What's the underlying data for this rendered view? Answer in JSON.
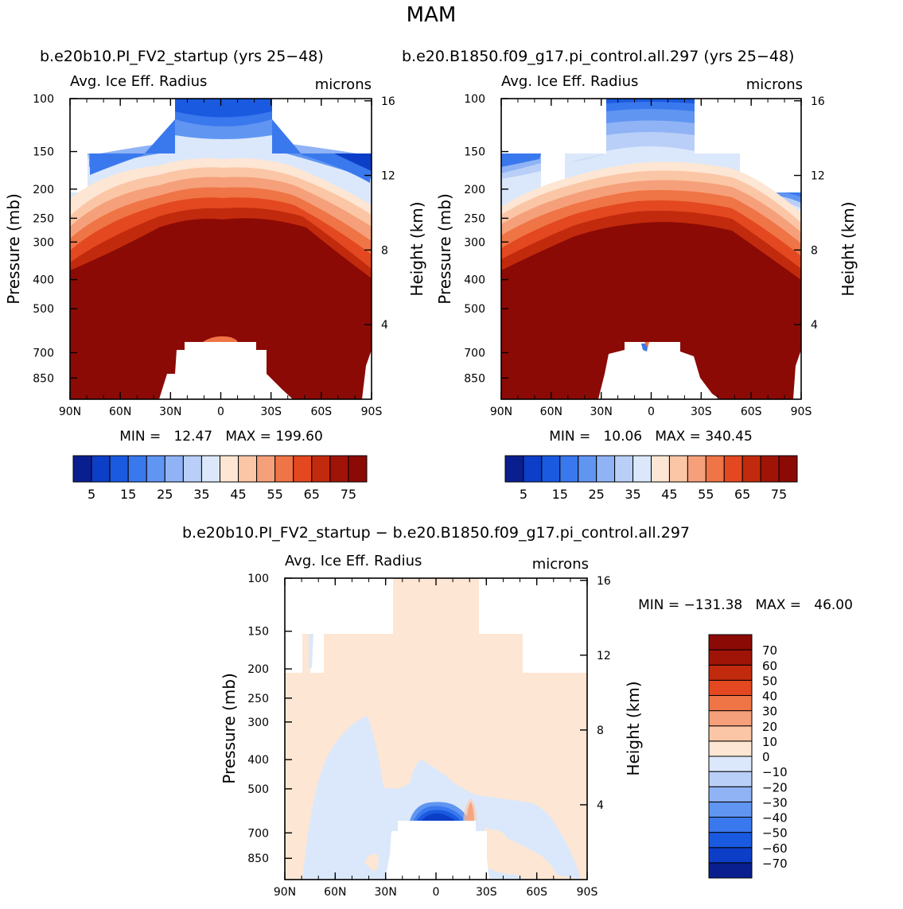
{
  "figure": {
    "title": "MAM",
    "colors": {
      "background": "#ffffff",
      "missing": "#ffffff",
      "frame": "#000000"
    }
  },
  "chart_data": [
    {
      "type": "contour",
      "id": "top-left",
      "case_title": "b.e20b10.PI_FV2_startup (yrs 25−48)",
      "variable": "Avg. Ice Eff. Radius",
      "units": "microns",
      "ylabel": "Pressure (mb)",
      "ylabel_right": "Height (km)",
      "x_ticks": [
        "90N",
        "60N",
        "30N",
        "0",
        "30S",
        "60S",
        "90S"
      ],
      "x_tick_values": [
        90,
        60,
        30,
        0,
        -30,
        -60,
        -90
      ],
      "y_ticks": [
        "100",
        "150",
        "200",
        "250",
        "300",
        "400",
        "500",
        "700",
        "850"
      ],
      "y_tick_values": [
        100,
        150,
        200,
        250,
        300,
        400,
        500,
        700,
        850
      ],
      "y_right_ticks": [
        "16",
        "12",
        "8",
        "4"
      ],
      "y_right_tick_values": [
        16,
        12,
        8,
        4
      ],
      "ylim": [
        100,
        1000
      ],
      "xlim": [
        90,
        -90
      ],
      "min_label": "MIN =   12.47   MAX = 199.60",
      "min": 12.47,
      "max": 199.6,
      "colorbar": {
        "levels": [
          5,
          10,
          15,
          20,
          25,
          30,
          35,
          40,
          45,
          50,
          55,
          60,
          65,
          70,
          75
        ],
        "labels": [
          "5",
          "15",
          "25",
          "35",
          "45",
          "55",
          "65",
          "75"
        ],
        "colors": [
          "#0a1f8f",
          "#0d3ec7",
          "#1a5ae0",
          "#3a78ee",
          "#6095f2",
          "#8fb3f5",
          "#b9cff8",
          "#dbe8fb",
          "#fde6d3",
          "#fbc6a6",
          "#f5a07a",
          "#ef7446",
          "#e34820",
          "#c22a0d",
          "#a01408",
          "#8b0a05"
        ]
      }
    },
    {
      "type": "contour",
      "id": "top-right",
      "case_title": "b.e20.B1850.f09_g17.pi_control.all.297 (yrs 25−48)",
      "variable": "Avg. Ice Eff. Radius",
      "units": "microns",
      "ylabel": "Pressure (mb)",
      "ylabel_right": "Height (km)",
      "x_ticks": [
        "90N",
        "60N",
        "30N",
        "0",
        "30S",
        "60S",
        "90S"
      ],
      "x_tick_values": [
        90,
        60,
        30,
        0,
        -30,
        -60,
        -90
      ],
      "y_ticks": [
        "100",
        "150",
        "200",
        "250",
        "300",
        "400",
        "500",
        "700",
        "850"
      ],
      "y_tick_values": [
        100,
        150,
        200,
        250,
        300,
        400,
        500,
        700,
        850
      ],
      "y_right_ticks": [
        "16",
        "12",
        "8",
        "4"
      ],
      "y_right_tick_values": [
        16,
        12,
        8,
        4
      ],
      "ylim": [
        100,
        1000
      ],
      "xlim": [
        90,
        -90
      ],
      "min_label": "MIN =   10.06   MAX = 340.45",
      "min": 10.06,
      "max": 340.45,
      "colorbar": {
        "levels": [
          5,
          10,
          15,
          20,
          25,
          30,
          35,
          40,
          45,
          50,
          55,
          60,
          65,
          70,
          75
        ],
        "labels": [
          "5",
          "15",
          "25",
          "35",
          "45",
          "55",
          "65",
          "75"
        ],
        "colors": [
          "#0a1f8f",
          "#0d3ec7",
          "#1a5ae0",
          "#3a78ee",
          "#6095f2",
          "#8fb3f5",
          "#b9cff8",
          "#dbe8fb",
          "#fde6d3",
          "#fbc6a6",
          "#f5a07a",
          "#ef7446",
          "#e34820",
          "#c22a0d",
          "#a01408",
          "#8b0a05"
        ]
      }
    },
    {
      "type": "contour",
      "id": "bottom",
      "case_title": "b.e20b10.PI_FV2_startup − b.e20.B1850.f09_g17.pi_control.all.297",
      "variable": "Avg. Ice Eff. Radius",
      "units": "microns",
      "ylabel": "Pressure (mb)",
      "ylabel_right": "Height (km)",
      "x_ticks": [
        "90N",
        "60N",
        "30N",
        "0",
        "30S",
        "60S",
        "90S"
      ],
      "x_tick_values": [
        90,
        60,
        30,
        0,
        -30,
        -60,
        -90
      ],
      "y_ticks": [
        "100",
        "150",
        "200",
        "250",
        "300",
        "400",
        "500",
        "700",
        "850"
      ],
      "y_tick_values": [
        100,
        150,
        200,
        250,
        300,
        400,
        500,
        700,
        850
      ],
      "y_right_ticks": [
        "16",
        "12",
        "8",
        "4"
      ],
      "y_right_tick_values": [
        16,
        12,
        8,
        4
      ],
      "ylim": [
        100,
        1000
      ],
      "xlim": [
        90,
        -90
      ],
      "min_label": "MIN = −131.38   MAX =   46.00",
      "min": -131.38,
      "max": 46.0,
      "colorbar": {
        "levels": [
          -70,
          -60,
          -50,
          -40,
          -30,
          -20,
          -10,
          0,
          10,
          20,
          30,
          40,
          50,
          60,
          70
        ],
        "labels": [
          "−70",
          "−60",
          "−50",
          "−40",
          "−30",
          "−20",
          "−10",
          "0",
          "10",
          "20",
          "30",
          "40",
          "50",
          "60",
          "70"
        ],
        "colors": [
          "#0a1f8f",
          "#0d3ec7",
          "#1a5ae0",
          "#3a78ee",
          "#6095f2",
          "#8fb3f5",
          "#b9cff8",
          "#dbe8fb",
          "#fde6d3",
          "#fbc6a6",
          "#f5a07a",
          "#ef7446",
          "#e34820",
          "#c22a0d",
          "#a01408",
          "#8b0a05"
        ]
      }
    }
  ]
}
